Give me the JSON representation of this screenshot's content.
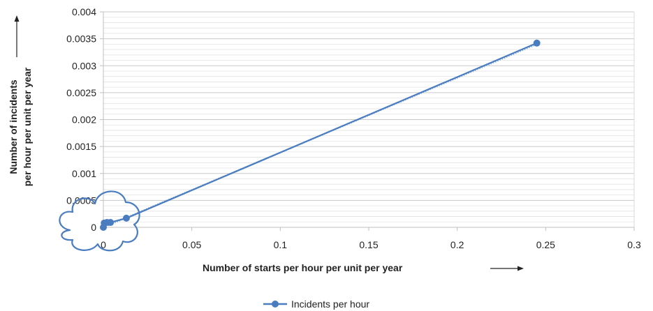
{
  "chart_data": {
    "type": "scatter",
    "xlabel": "Number of starts per hour per unit per year",
    "ylabel_lines": [
      "Number of incidents",
      "per hour per unit per year"
    ],
    "xlim": [
      0,
      0.3
    ],
    "ylim": [
      0,
      0.004
    ],
    "x_ticks": [
      "0",
      "0.05",
      "0.1",
      "0.15",
      "0.2",
      "0.25",
      "0.3"
    ],
    "y_ticks": [
      "0",
      "0.0005",
      "0.001",
      "0.0015",
      "0.002",
      "0.0025",
      "0.003",
      "0.0035",
      "0.004"
    ],
    "grid": true,
    "legend_position": "bottom",
    "series": [
      {
        "name": "Incidents per hour",
        "color": "#4a7cc0",
        "points": [
          {
            "x": 0.0,
            "y": 0.0
          },
          {
            "x": 0.0005,
            "y": 8e-05
          },
          {
            "x": 0.002,
            "y": 9e-05
          },
          {
            "x": 0.004,
            "y": 9e-05
          },
          {
            "x": 0.013,
            "y": 0.00017
          },
          {
            "x": 0.245,
            "y": 0.00342
          }
        ]
      }
    ],
    "trendline": {
      "style": "dotted",
      "color": "#8fb0dc",
      "from": [
        0.0,
        0.0
      ],
      "to": [
        0.245,
        0.0034
      ]
    },
    "annotation": {
      "shape": "cloud",
      "description": "cloud outline around the origin cluster",
      "color": "#4a7cc0"
    }
  }
}
